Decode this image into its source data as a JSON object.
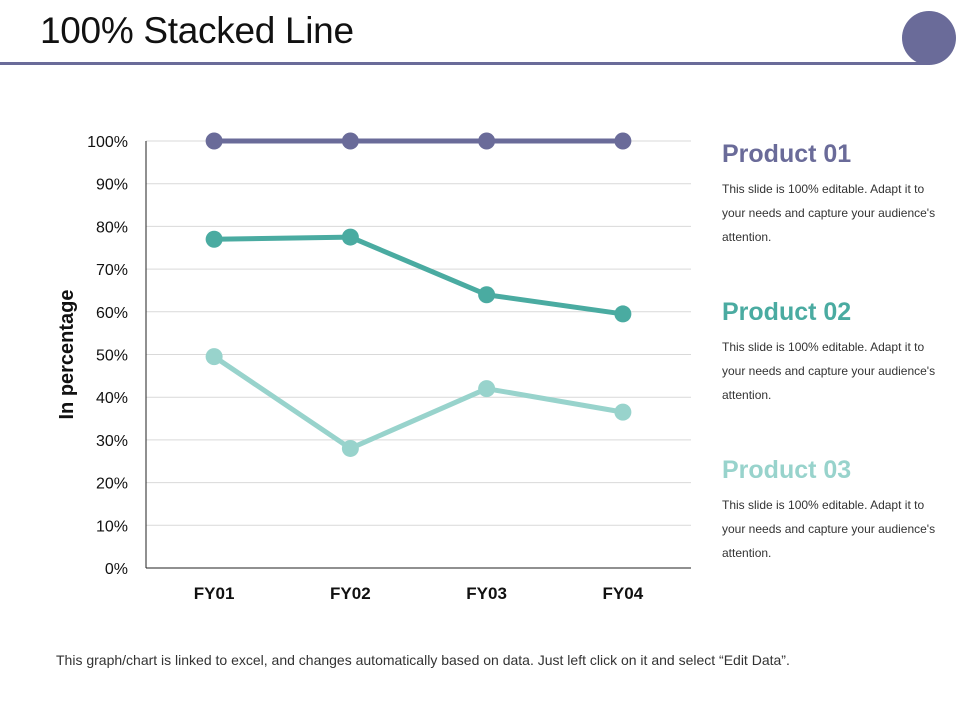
{
  "title": "100% Stacked Line",
  "footnote": "This graph/chart is linked to excel, and changes automatically based on data. Just left click on it and select “Edit Data”.",
  "colors": {
    "title_rule": "#6a6b99",
    "product01": "#6a6b99",
    "product02": "#4aaba1",
    "product03": "#98d3cc",
    "gridline": "#d9d9d9",
    "axis": "#222222"
  },
  "products": [
    {
      "name": "Product 01",
      "description": "This slide is 100% editable. Adapt it to your needs and capture your audience's attention."
    },
    {
      "name": "Product 02",
      "description": "This slide is 100% editable. Adapt it to your needs and capture your audience's attention."
    },
    {
      "name": "Product 03",
      "description": "This slide is 100% editable. Adapt it to your needs and capture your audience's attention."
    }
  ],
  "chart_data": {
    "type": "line",
    "title": "",
    "xlabel": "",
    "ylabel": "In percentage",
    "categories": [
      "FY01",
      "FY02",
      "FY03",
      "FY04"
    ],
    "ylim": [
      0,
      100
    ],
    "yticks": [
      "0%",
      "10%",
      "20%",
      "30%",
      "40%",
      "50%",
      "60%",
      "70%",
      "80%",
      "90%",
      "100%"
    ],
    "grid": true,
    "series": [
      {
        "name": "Product 01",
        "values": [
          100,
          100,
          100,
          100
        ]
      },
      {
        "name": "Product 02",
        "values": [
          77,
          77.5,
          64,
          59.5
        ]
      },
      {
        "name": "Product 03",
        "values": [
          49.5,
          28,
          42,
          36.5
        ]
      }
    ]
  }
}
